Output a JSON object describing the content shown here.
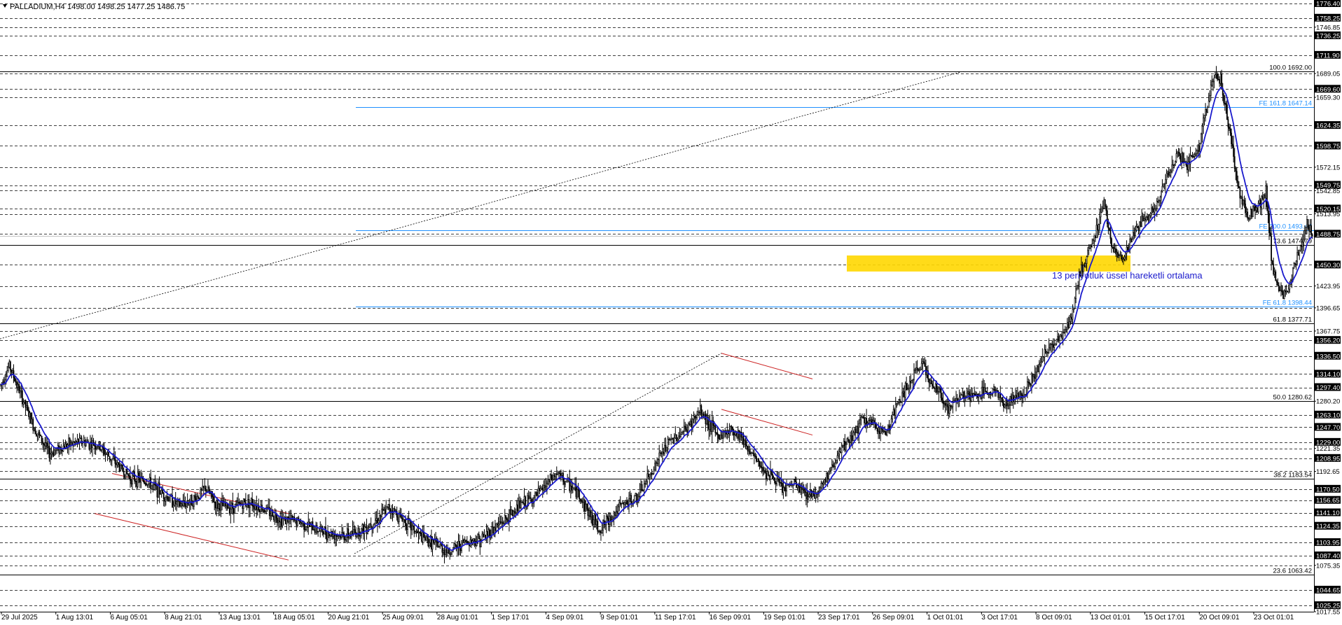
{
  "chart_data": {
    "type": "candlestick",
    "symbol_label": "PALLADIUM,H4",
    "ohlc_label": "1498.00 1498.25 1477.25 1486.75",
    "ylim": [
      1017.55,
      1776.4
    ],
    "price_axis_ticks": [
      {
        "v": 1776.4,
        "label": "1776.40",
        "boxed": true
      },
      {
        "v": 1758.25,
        "label": "1758.25",
        "boxed": true
      },
      {
        "v": 1746.85,
        "label": "1746.85",
        "boxed": false
      },
      {
        "v": 1736.25,
        "label": "1736.25",
        "boxed": true
      },
      {
        "v": 1711.9,
        "label": "1711.90",
        "boxed": true
      },
      {
        "v": 1689.05,
        "label": "1689.05",
        "boxed": false
      },
      {
        "v": 1669.6,
        "label": "1669.60",
        "boxed": true
      },
      {
        "v": 1659.3,
        "label": "1659.30",
        "boxed": false
      },
      {
        "v": 1624.35,
        "label": "1624.35",
        "boxed": true
      },
      {
        "v": 1598.75,
        "label": "1598.75",
        "boxed": true
      },
      {
        "v": 1572.15,
        "label": "1572.15",
        "boxed": false
      },
      {
        "v": 1549.75,
        "label": "1549.75",
        "boxed": true
      },
      {
        "v": 1542.85,
        "label": "1542.85",
        "boxed": false
      },
      {
        "v": 1520.15,
        "label": "1520.15",
        "boxed": true
      },
      {
        "v": 1513.95,
        "label": "1513.95",
        "boxed": false
      },
      {
        "v": 1488.75,
        "label": "1488.75",
        "boxed": true
      },
      {
        "v": 1450.3,
        "label": "1450.30",
        "boxed": true
      },
      {
        "v": 1423.95,
        "label": "1423.95",
        "boxed": false
      },
      {
        "v": 1396.65,
        "label": "1396.65",
        "boxed": false
      },
      {
        "v": 1367.75,
        "label": "1367.75",
        "boxed": false
      },
      {
        "v": 1356.2,
        "label": "1356.20",
        "boxed": true
      },
      {
        "v": 1336.5,
        "label": "1336.50",
        "boxed": true
      },
      {
        "v": 1314.1,
        "label": "1314.10",
        "boxed": true
      },
      {
        "v": 1297.4,
        "label": "1297.40",
        "boxed": true
      },
      {
        "v": 1280.2,
        "label": "1280.20",
        "boxed": false
      },
      {
        "v": 1263.1,
        "label": "1263.10",
        "boxed": true
      },
      {
        "v": 1247.7,
        "label": "1247.70",
        "boxed": true
      },
      {
        "v": 1229.0,
        "label": "1229.00",
        "boxed": true
      },
      {
        "v": 1221.35,
        "label": "1221.35",
        "boxed": false
      },
      {
        "v": 1208.95,
        "label": "1208.95",
        "boxed": true
      },
      {
        "v": 1192.65,
        "label": "1192.65",
        "boxed": false
      },
      {
        "v": 1170.5,
        "label": "1170.50",
        "boxed": true
      },
      {
        "v": 1156.65,
        "label": "1156.65",
        "boxed": true
      },
      {
        "v": 1141.1,
        "label": "1141.10",
        "boxed": true
      },
      {
        "v": 1124.35,
        "label": "1124.35",
        "boxed": true
      },
      {
        "v": 1103.95,
        "label": "1103.95",
        "boxed": true
      },
      {
        "v": 1087.4,
        "label": "1087.40",
        "boxed": true
      },
      {
        "v": 1075.35,
        "label": "1075.35",
        "boxed": false
      },
      {
        "v": 1044.65,
        "label": "1044.65",
        "boxed": true
      },
      {
        "v": 1025.25,
        "label": "1025.25",
        "boxed": true
      },
      {
        "v": 1017.55,
        "label": "1017.55",
        "boxed": false
      }
    ],
    "time_axis_ticks": [
      "29 Jul 2025",
      "1 Aug 13:01",
      "6 Aug 05:01",
      "8 Aug 21:01",
      "13 Aug 13:01",
      "18 Aug 05:01",
      "20 Aug 21:01",
      "25 Aug 09:01",
      "28 Aug 01:01",
      "1 Sep 17:01",
      "4 Sep 09:01",
      "9 Sep 01:01",
      "11 Sep 17:01",
      "16 Sep 09:01",
      "19 Sep 01:01",
      "23 Sep 17:01",
      "26 Sep 09:01",
      "1 Oct 01:01",
      "3 Oct 17:01",
      "8 Oct 09:01",
      "13 Oct 01:01",
      "15 Oct 17:01",
      "20 Oct 09:01",
      "23 Oct 01:01"
    ],
    "fib_retracement": [
      {
        "v": 1692.0,
        "label": "100.0 1692.00"
      },
      {
        "v": 1474.79,
        "label": "73.6 1474.79"
      },
      {
        "v": 1377.71,
        "label": "61.8 1377.71"
      },
      {
        "v": 1280.62,
        "label": "50.0 1280.62"
      },
      {
        "v": 1183.54,
        "label": "38.2 1183.54"
      },
      {
        "v": 1063.42,
        "label": "23.6 1063.42"
      }
    ],
    "fib_expansion": [
      {
        "v": 1647.14,
        "label": "FE 161.8 1647.14"
      },
      {
        "v": 1493.44,
        "label": "FE 100.0 1493.44"
      },
      {
        "v": 1398.44,
        "label": "FE 61.8 1398.44"
      }
    ],
    "support_zone": [
      1442,
      1462
    ],
    "current_price": 1486.75,
    "annotation": "13 periyotluk üssel hareketli ortalama",
    "colors": {
      "candle": "#000000",
      "ema": "#1a1acc",
      "fe": "#1e90ff",
      "channel": "#cc2222",
      "zone": "#ffd700"
    },
    "price_path": [
      [
        0,
        1300
      ],
      [
        8,
        1325
      ],
      [
        18,
        1290
      ],
      [
        30,
        1250
      ],
      [
        45,
        1215
      ],
      [
        60,
        1225
      ],
      [
        75,
        1230
      ],
      [
        90,
        1225
      ],
      [
        105,
        1205
      ],
      [
        120,
        1185
      ],
      [
        135,
        1180
      ],
      [
        150,
        1165
      ],
      [
        165,
        1150
      ],
      [
        180,
        1158
      ],
      [
        190,
        1172
      ],
      [
        200,
        1150
      ],
      [
        215,
        1148
      ],
      [
        230,
        1155
      ],
      [
        245,
        1145
      ],
      [
        260,
        1133
      ],
      [
        275,
        1130
      ],
      [
        290,
        1122
      ],
      [
        305,
        1115
      ],
      [
        320,
        1112
      ],
      [
        335,
        1120
      ],
      [
        350,
        1135
      ],
      [
        360,
        1148
      ],
      [
        375,
        1130
      ],
      [
        390,
        1110
      ],
      [
        405,
        1100
      ],
      [
        415,
        1092
      ],
      [
        430,
        1105
      ],
      [
        445,
        1108
      ],
      [
        460,
        1125
      ],
      [
        470,
        1135
      ],
      [
        480,
        1150
      ],
      [
        495,
        1160
      ],
      [
        505,
        1175
      ],
      [
        515,
        1190
      ],
      [
        525,
        1178
      ],
      [
        535,
        1165
      ],
      [
        545,
        1140
      ],
      [
        555,
        1120
      ],
      [
        565,
        1135
      ],
      [
        575,
        1150
      ],
      [
        590,
        1160
      ],
      [
        600,
        1185
      ],
      [
        610,
        1210
      ],
      [
        620,
        1230
      ],
      [
        635,
        1245
      ],
      [
        648,
        1268
      ],
      [
        655,
        1255
      ],
      [
        665,
        1235
      ],
      [
        675,
        1245
      ],
      [
        685,
        1240
      ],
      [
        695,
        1215
      ],
      [
        705,
        1198
      ],
      [
        715,
        1185
      ],
      [
        725,
        1170
      ],
      [
        735,
        1178
      ],
      [
        745,
        1165
      ],
      [
        755,
        1165
      ],
      [
        765,
        1185
      ],
      [
        775,
        1210
      ],
      [
        790,
        1240
      ],
      [
        800,
        1258
      ],
      [
        810,
        1248
      ],
      [
        820,
        1240
      ],
      [
        830,
        1275
      ],
      [
        845,
        1310
      ],
      [
        855,
        1330
      ],
      [
        862,
        1300
      ],
      [
        870,
        1290
      ],
      [
        878,
        1270
      ],
      [
        890,
        1290
      ],
      [
        900,
        1285
      ],
      [
        910,
        1290
      ],
      [
        920,
        1295
      ],
      [
        930,
        1275
      ],
      [
        940,
        1285
      ],
      [
        950,
        1295
      ],
      [
        960,
        1320
      ],
      [
        970,
        1345
      ],
      [
        980,
        1360
      ],
      [
        990,
        1375
      ],
      [
        1000,
        1440
      ],
      [
        1012,
        1480
      ],
      [
        1022,
        1530
      ],
      [
        1030,
        1470
      ],
      [
        1040,
        1455
      ],
      [
        1050,
        1490
      ],
      [
        1060,
        1510
      ],
      [
        1070,
        1520
      ],
      [
        1080,
        1560
      ],
      [
        1090,
        1590
      ],
      [
        1100,
        1575
      ],
      [
        1110,
        1600
      ],
      [
        1118,
        1650
      ],
      [
        1124,
        1690
      ],
      [
        1130,
        1680
      ],
      [
        1137,
        1630
      ],
      [
        1145,
        1555
      ],
      [
        1155,
        1510
      ],
      [
        1165,
        1525
      ],
      [
        1172,
        1540
      ],
      [
        1178,
        1450
      ],
      [
        1184,
        1420
      ],
      [
        1192,
        1410
      ],
      [
        1198,
        1450
      ],
      [
        1205,
        1475
      ],
      [
        1210,
        1505
      ],
      [
        1215,
        1487
      ]
    ]
  }
}
